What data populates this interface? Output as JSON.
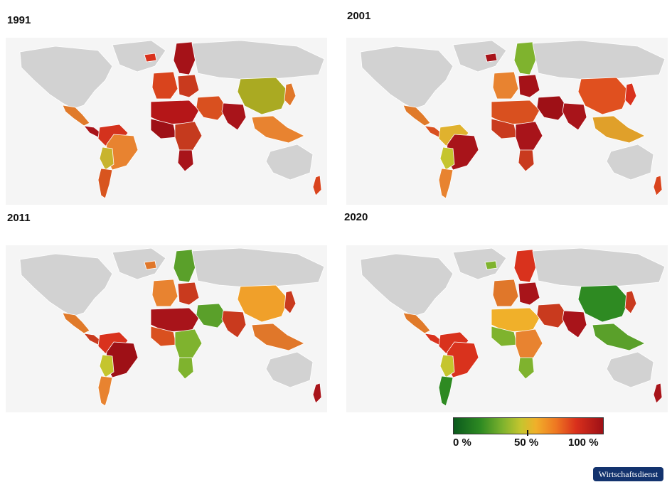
{
  "panels": [
    {
      "title": "1991",
      "colors": {
        "na": "#e07a2a",
        "ca": "#a8141a",
        "sa1": "#d4321d",
        "brazil": "#e88330",
        "sa3": "#c8b42e",
        "chile": "#d8551f",
        "eu_n": "#a51218",
        "eu_w": "#d9441d",
        "eu_e": "#c93a1e",
        "nafrica": "#b51618",
        "wafrica": "#9e1016",
        "eafrica": "#c53a1e",
        "safrica": "#a8141a",
        "mideast": "#d9501f",
        "russia": "#d0d0d0",
        "china": "#aaaa22",
        "india": "#a8141a",
        "seasia": "#e88330",
        "japan": "#e0772a",
        "nz": "#d9441d",
        "iceland": "#d9321d"
      }
    },
    {
      "title": "2001",
      "colors": {
        "na": "#e07a2a",
        "ca": "#d9501f",
        "sa1": "#e0b22e",
        "brazil": "#a8141a",
        "sa3": "#c5c52e",
        "chile": "#e88330",
        "eu_n": "#7fb32e",
        "eu_w": "#e88330",
        "eu_e": "#a51218",
        "nafrica": "#d9501f",
        "wafrica": "#c93a1e",
        "eafrica": "#a8141a",
        "safrica": "#c93a1e",
        "mideast": "#9e1016",
        "russia": "#d0d0d0",
        "china": "#e0501f",
        "india": "#a8141a",
        "seasia": "#e0a02a",
        "japan": "#d9321d",
        "nz": "#d9441d",
        "iceland": "#a8141a"
      }
    },
    {
      "title": "2011",
      "colors": {
        "na": "#e07a2a",
        "ca": "#c93a1e",
        "sa1": "#d9321d",
        "brazil": "#9e1016",
        "sa3": "#c5c52e",
        "chile": "#e88330",
        "eu_n": "#5aa02a",
        "eu_w": "#e88330",
        "eu_e": "#c93a1e",
        "nafrica": "#a8141a",
        "wafrica": "#d9501f",
        "eafrica": "#7fb32e",
        "safrica": "#7fb32e",
        "mideast": "#5aa02a",
        "russia": "#d0d0d0",
        "china": "#f0a02a",
        "india": "#c93a1e",
        "seasia": "#e0772a",
        "japan": "#c93a1e",
        "nz": "#a8141a",
        "iceland": "#e0772a"
      }
    },
    {
      "title": "2020",
      "colors": {
        "na": "#e07a2a",
        "ca": "#d9321d",
        "sa1": "#d9321d",
        "brazil": "#d9321d",
        "sa3": "#c5c52e",
        "chile": "#2e8a22",
        "eu_n": "#d9321d",
        "eu_w": "#e0772a",
        "eu_e": "#a8141a",
        "nafrica": "#f0b02a",
        "wafrica": "#7fb32e",
        "eafrica": "#e88330",
        "safrica": "#7fb32e",
        "mideast": "#c93a1e",
        "russia": "#d0d0d0",
        "china": "#2e8a22",
        "india": "#a8141a",
        "seasia": "#5aa02a",
        "japan": "#c93a1e",
        "nz": "#a8141a",
        "iceland": "#7fb32e"
      }
    }
  ],
  "legend": {
    "labels": [
      "0 %",
      "50 %",
      "100 %"
    ],
    "stops": [
      "#0b5a1d",
      "#2e8a22",
      "#7fb32e",
      "#c5c52e",
      "#f0b02a",
      "#ef7a22",
      "#d9301c",
      "#9e1016"
    ]
  },
  "badge": "Wirtschaftsdienst"
}
